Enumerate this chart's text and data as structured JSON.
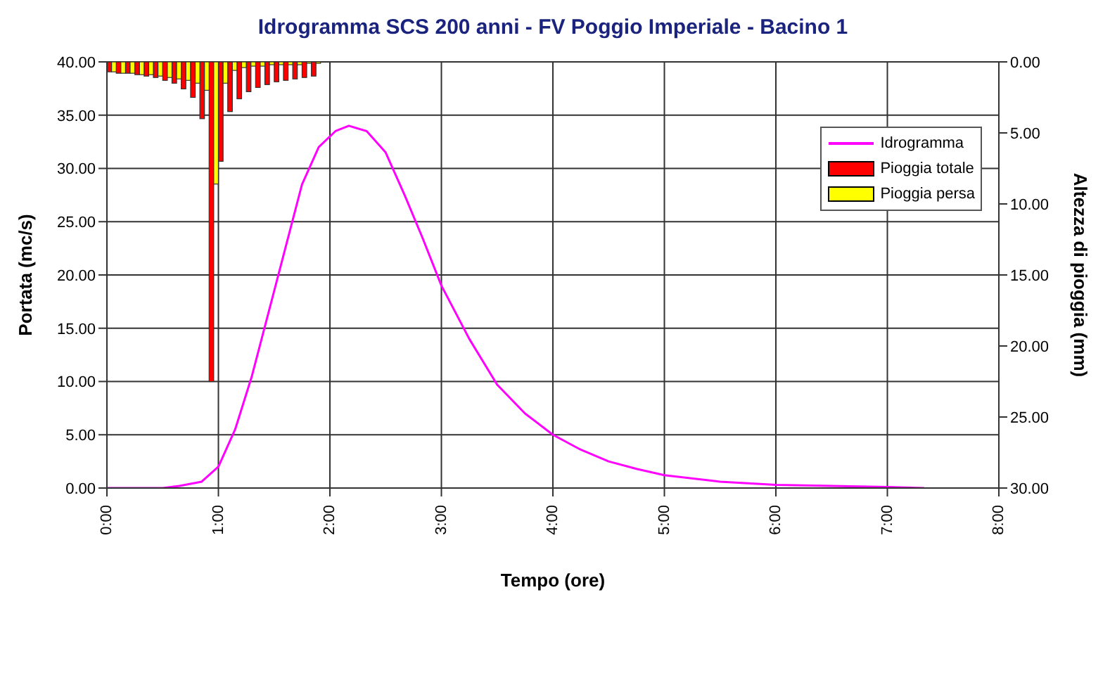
{
  "chart_data": {
    "type": "line",
    "title": "Idrogramma SCS 200 anni - FV Poggio Imperiale - Bacino 1",
    "xlabel": "Tempo (ore)",
    "ylabel": "Portata (mc/s)",
    "y2label": "Altezza di pioggia (mm)",
    "xlim": [
      0,
      8
    ],
    "xticks": [
      {
        "value": 0,
        "label": "0:00"
      },
      {
        "value": 1,
        "label": "1:00"
      },
      {
        "value": 2,
        "label": "2:00"
      },
      {
        "value": 3,
        "label": "3:00"
      },
      {
        "value": 4,
        "label": "4:00"
      },
      {
        "value": 5,
        "label": "5:00"
      },
      {
        "value": 6,
        "label": "6:00"
      },
      {
        "value": 7,
        "label": "7:00"
      },
      {
        "value": 8,
        "label": "8:00"
      }
    ],
    "ylim": [
      0,
      40
    ],
    "yticks": [
      {
        "value": 0,
        "label": "0.00"
      },
      {
        "value": 5,
        "label": "5.00"
      },
      {
        "value": 10,
        "label": "10.00"
      },
      {
        "value": 15,
        "label": "15.00"
      },
      {
        "value": 20,
        "label": "20.00"
      },
      {
        "value": 25,
        "label": "25.00"
      },
      {
        "value": 30,
        "label": "30.00"
      },
      {
        "value": 35,
        "label": "35.00"
      },
      {
        "value": 40,
        "label": "40.00"
      }
    ],
    "y2lim": [
      30,
      0
    ],
    "y2ticks": [
      {
        "value": 0,
        "label": "0.00"
      },
      {
        "value": 5,
        "label": "5.00"
      },
      {
        "value": 10,
        "label": "10.00"
      },
      {
        "value": 15,
        "label": "15.00"
      },
      {
        "value": 20,
        "label": "20.00"
      },
      {
        "value": 25,
        "label": "25.00"
      },
      {
        "value": 30,
        "label": "30.00"
      }
    ],
    "grid": true,
    "legend": "top right",
    "marker": "none",
    "line_style": "solid",
    "series": [
      {
        "name": "Idrogramma",
        "color": "#ff00ff",
        "x": [
          0,
          0.5,
          0.65,
          0.85,
          1.0,
          1.15,
          1.3,
          1.45,
          1.6,
          1.75,
          1.9,
          2.05,
          2.17,
          2.33,
          2.5,
          2.67,
          2.83,
          3.0,
          3.25,
          3.5,
          3.75,
          4.0,
          4.25,
          4.5,
          4.75,
          5.0,
          5.5,
          6.0,
          6.5,
          7.0,
          7.33
        ],
        "values": [
          0,
          0,
          0.2,
          0.6,
          2.0,
          5.5,
          10.5,
          16.5,
          22.5,
          28.5,
          32,
          33.5,
          34,
          33.5,
          31.5,
          27.5,
          23.5,
          19,
          14,
          9.7,
          7,
          5,
          3.6,
          2.5,
          1.8,
          1.2,
          0.6,
          0.3,
          0.2,
          0.1,
          0
        ]
      },
      {
        "name": "Pioggia totale",
        "type": "bar",
        "axis": "y2",
        "color": "#ff0000",
        "x": [
          0.042,
          0.125,
          0.208,
          0.292,
          0.375,
          0.458,
          0.542,
          0.625,
          0.708,
          0.792,
          0.875,
          0.958,
          1.042,
          1.125,
          1.208,
          1.292,
          1.375,
          1.458,
          1.542,
          1.625,
          1.708,
          1.792,
          1.875
        ],
        "values": [
          0.7,
          0.8,
          0.8,
          0.9,
          1.0,
          1.1,
          1.3,
          1.5,
          1.9,
          2.5,
          4.0,
          22.5,
          7.0,
          3.5,
          2.6,
          2.1,
          1.8,
          1.6,
          1.4,
          1.3,
          1.2,
          1.1,
          1.0
        ]
      },
      {
        "name": "Pioggia persa",
        "type": "bar",
        "axis": "y2",
        "color": "#ffff00",
        "x": [
          0.042,
          0.125,
          0.208,
          0.292,
          0.375,
          0.458,
          0.542,
          0.625,
          0.708,
          0.792,
          0.875,
          0.958,
          1.042,
          1.125,
          1.208,
          1.292,
          1.375,
          1.458,
          1.542,
          1.625,
          1.708,
          1.792,
          1.875
        ],
        "values": [
          0.7,
          0.8,
          0.8,
          0.9,
          0.9,
          1.0,
          1.1,
          1.2,
          1.3,
          1.5,
          2.0,
          8.6,
          1.5,
          0.6,
          0.4,
          0.3,
          0.3,
          0.2,
          0.2,
          0.2,
          0.2,
          0.1,
          0.1
        ]
      }
    ]
  }
}
